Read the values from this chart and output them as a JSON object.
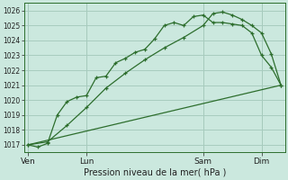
{
  "title": "Pression niveau de la mer( hPa )",
  "bg_color": "#cbe8de",
  "grid_color": "#a8ccbf",
  "line_color": "#2d6e2d",
  "ylim": [
    1016.5,
    1026.5
  ],
  "yticks": [
    1017,
    1018,
    1019,
    1020,
    1021,
    1022,
    1023,
    1024,
    1025,
    1026
  ],
  "xtick_labels": [
    "Ven",
    "Lun",
    "Sam",
    "Dim"
  ],
  "xtick_positions": [
    0,
    3,
    9,
    12
  ],
  "series1_x": [
    0,
    0.5,
    1.0,
    1.5,
    2.0,
    2.5,
    3.0,
    3.5,
    4.0,
    4.5,
    5.0,
    5.5,
    6.0,
    6.5,
    7.0,
    7.5,
    8.0,
    8.5,
    9.0,
    9.5,
    10.0,
    10.5,
    11.0,
    11.5,
    12.0,
    12.5,
    13.0
  ],
  "series1_y": [
    1017.0,
    1016.85,
    1017.1,
    1019.0,
    1019.9,
    1020.2,
    1020.3,
    1021.5,
    1021.6,
    1022.5,
    1022.8,
    1023.2,
    1023.4,
    1024.1,
    1025.0,
    1025.2,
    1025.0,
    1025.6,
    1025.7,
    1025.2,
    1025.2,
    1025.1,
    1025.0,
    1024.5,
    1023.0,
    1022.2,
    1021.0
  ],
  "series2_x": [
    0,
    1.0,
    2.0,
    3.0,
    4.0,
    5.0,
    6.0,
    7.0,
    8.0,
    9.0,
    9.5,
    10.0,
    10.5,
    11.0,
    11.5,
    12.0,
    12.5,
    13.0
  ],
  "series2_y": [
    1017.0,
    1017.2,
    1018.3,
    1019.5,
    1020.8,
    1021.8,
    1022.7,
    1023.5,
    1024.2,
    1025.0,
    1025.8,
    1025.9,
    1025.7,
    1025.4,
    1025.0,
    1024.5,
    1023.1,
    1021.0
  ],
  "series3_x": [
    0,
    13
  ],
  "series3_y": [
    1017.0,
    1021.0
  ],
  "xlim": [
    -0.2,
    13.2
  ]
}
